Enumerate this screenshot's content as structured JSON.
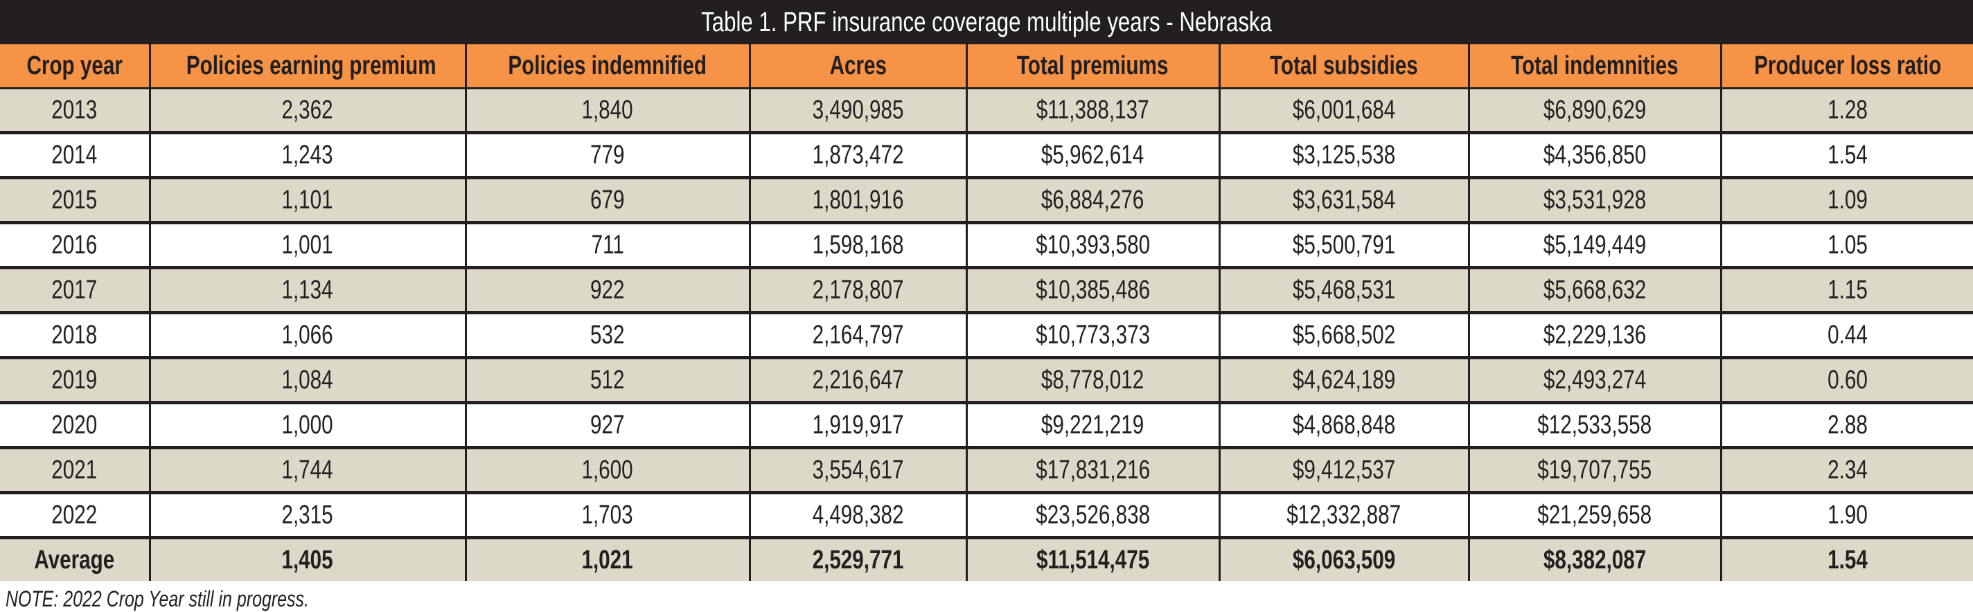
{
  "title": "Table 1. PRF insurance coverage multiple years - Nebraska",
  "colors": {
    "title_bg": "#231f20",
    "header_bg": "#f79346",
    "shaded_row": "#ddd9c9"
  },
  "columns": [
    "Crop year",
    "Policies earning premium",
    "Policies indemnified",
    "Acres",
    "Total premiums",
    "Total subsidies",
    "Total indemnities",
    "Producer loss ratio"
  ],
  "rows": [
    [
      "2013",
      "2,362",
      "1,840",
      "3,490,985",
      "$11,388,137",
      "$6,001,684",
      "$6,890,629",
      "1.28"
    ],
    [
      "2014",
      "1,243",
      "779",
      "1,873,472",
      "$5,962,614",
      "$3,125,538",
      "$4,356,850",
      "1.54"
    ],
    [
      "2015",
      "1,101",
      "679",
      "1,801,916",
      "$6,884,276",
      "$3,631,584",
      "$3,531,928",
      "1.09"
    ],
    [
      "2016",
      "1,001",
      "711",
      "1,598,168",
      "$10,393,580",
      "$5,500,791",
      "$5,149,449",
      "1.05"
    ],
    [
      "2017",
      "1,134",
      "922",
      "2,178,807",
      "$10,385,486",
      "$5,468,531",
      "$5,668,632",
      "1.15"
    ],
    [
      "2018",
      "1,066",
      "532",
      "2,164,797",
      "$10,773,373",
      "$5,668,502",
      "$2,229,136",
      "0.44"
    ],
    [
      "2019",
      "1,084",
      "512",
      "2,216,647",
      "$8,778,012",
      "$4,624,189",
      "$2,493,274",
      "0.60"
    ],
    [
      "2020",
      "1,000",
      "927",
      "1,919,917",
      "$9,221,219",
      "$4,868,848",
      "$12,533,558",
      "2.88"
    ],
    [
      "2021",
      "1,744",
      "1,600",
      "3,554,617",
      "$17,831,216",
      "$9,412,537",
      "$19,707,755",
      "2.34"
    ],
    [
      "2022",
      "2,315",
      "1,703",
      "4,498,382",
      "$23,526,838",
      "$12,332,887",
      "$21,259,658",
      "1.90"
    ]
  ],
  "average": [
    "Average",
    "1,405",
    "1,021",
    "2,529,771",
    "$11,514,475",
    "$6,063,509",
    "$8,382,087",
    "1.54"
  ],
  "note": "NOTE: 2022 Crop Year still in progress."
}
